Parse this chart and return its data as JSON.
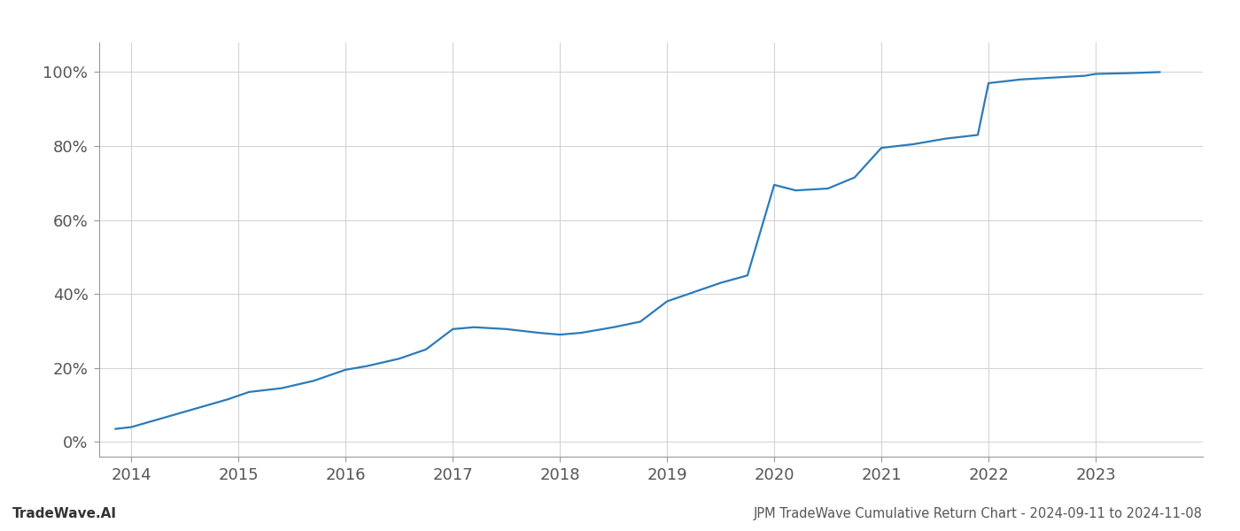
{
  "x_years": [
    2013.85,
    2014.0,
    2014.3,
    2014.6,
    2014.9,
    2015.1,
    2015.4,
    2015.7,
    2016.0,
    2016.2,
    2016.5,
    2016.75,
    2017.0,
    2017.2,
    2017.5,
    2017.8,
    2018.0,
    2018.2,
    2018.5,
    2018.75,
    2019.0,
    2019.2,
    2019.5,
    2019.75,
    2020.0,
    2020.2,
    2020.5,
    2020.75,
    2021.0,
    2021.3,
    2021.6,
    2021.9,
    2022.0,
    2022.3,
    2022.6,
    2022.9,
    2023.0,
    2023.3,
    2023.6
  ],
  "y_values": [
    3.5,
    4.0,
    6.5,
    9.0,
    11.5,
    13.5,
    14.5,
    16.5,
    19.5,
    20.5,
    22.5,
    25.0,
    30.5,
    31.0,
    30.5,
    29.5,
    29.0,
    29.5,
    31.0,
    32.5,
    38.0,
    40.0,
    43.0,
    45.0,
    69.5,
    68.0,
    68.5,
    71.5,
    79.5,
    80.5,
    82.0,
    83.0,
    97.0,
    98.0,
    98.5,
    99.0,
    99.5,
    99.7,
    100.0
  ],
  "line_color": "#2b7bba",
  "line_width": 1.6,
  "background_color": "#ffffff",
  "grid_color": "#d0d0d0",
  "title": "JPM TradeWave Cumulative Return Chart - 2024-09-11 to 2024-11-08",
  "watermark": "TradeWave.AI",
  "x_tick_labels": [
    "2014",
    "2015",
    "2016",
    "2017",
    "2018",
    "2019",
    "2020",
    "2021",
    "2022",
    "2023"
  ],
  "x_tick_positions": [
    2014,
    2015,
    2016,
    2017,
    2018,
    2019,
    2020,
    2021,
    2022,
    2023
  ],
  "y_ticks": [
    0,
    20,
    40,
    60,
    80,
    100
  ],
  "y_tick_labels": [
    "0%",
    "20%",
    "40%",
    "60%",
    "80%",
    "100%"
  ],
  "xlim": [
    2013.7,
    2024.0
  ],
  "ylim": [
    -4,
    108
  ]
}
